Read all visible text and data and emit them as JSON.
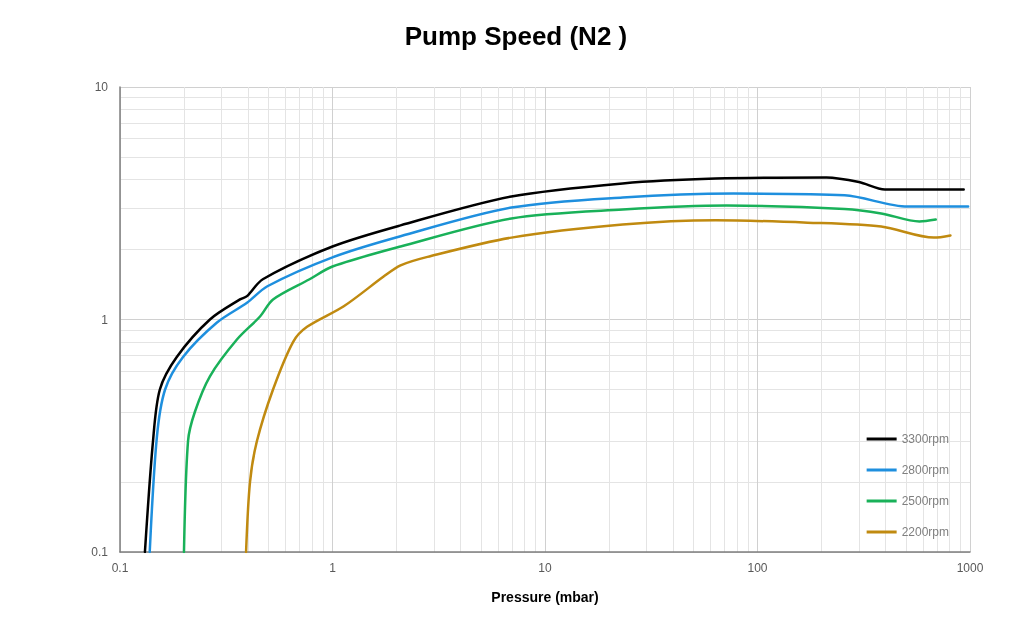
{
  "chart_data": {
    "type": "line",
    "title": "Pump Speed (N2 )",
    "xlabel": "Pressure (mbar)",
    "log": "xy",
    "xlim": [
      0.1,
      1000
    ],
    "xticks": [
      0.1,
      1,
      10,
      100,
      1000
    ],
    "ylim": [
      0.1,
      10
    ],
    "yticks": [
      0.1,
      1,
      10
    ],
    "grid": true,
    "legend": "bottom right",
    "marker": "none",
    "line_style": "solid",
    "series": [
      {
        "name": "3300rpm",
        "color": "#000000",
        "x": [
          0.131,
          0.143,
          0.154,
          0.185,
          0.265,
          0.367,
          0.396,
          0.47,
          1,
          2.09,
          6.95,
          23.2,
          63.5,
          211,
          300,
          398,
          934
        ],
        "values": [
          0.1,
          0.3,
          0.5,
          0.69,
          1.0,
          1.22,
          1.26,
          1.49,
          2.06,
          2.54,
          3.38,
          3.85,
          4.04,
          4.08,
          3.9,
          3.62,
          3.62
        ]
      },
      {
        "name": "2800rpm",
        "color": "#1e8fde",
        "x": [
          0.138,
          0.149,
          0.163,
          0.198,
          0.286,
          0.396,
          0.494,
          1,
          2.09,
          6.95,
          23.2,
          77,
          257,
          508,
          980
        ],
        "values": [
          0.1,
          0.31,
          0.5,
          0.69,
          0.97,
          1.18,
          1.39,
          1.85,
          2.28,
          3.03,
          3.35,
          3.48,
          3.42,
          3.06,
          3.06
        ]
      },
      {
        "name": "2500rpm",
        "color": "#19b159",
        "x": [
          0.2,
          0.209,
          0.225,
          0.265,
          0.355,
          0.456,
          0.525,
          0.78,
          1,
          2.09,
          6.95,
          23.2,
          71.5,
          257,
          382,
          578,
          690
        ],
        "values": [
          0.1,
          0.3,
          0.4,
          0.57,
          0.82,
          1.03,
          1.22,
          1.49,
          1.69,
          2.06,
          2.72,
          2.97,
          3.09,
          2.99,
          2.86,
          2.64,
          2.69
        ]
      },
      {
        "name": "2200rpm",
        "color": "#c08a10",
        "x": [
          0.392,
          0.409,
          0.441,
          0.525,
          0.652,
          0.759,
          1.13,
          1.74,
          2.09,
          2.8,
          6.95,
          23.2,
          63.5,
          172,
          382,
          676,
          809
        ],
        "values": [
          0.1,
          0.2,
          0.3,
          0.5,
          0.8,
          0.93,
          1.14,
          1.53,
          1.71,
          1.86,
          2.25,
          2.56,
          2.67,
          2.61,
          2.51,
          2.25,
          2.3
        ]
      }
    ]
  }
}
